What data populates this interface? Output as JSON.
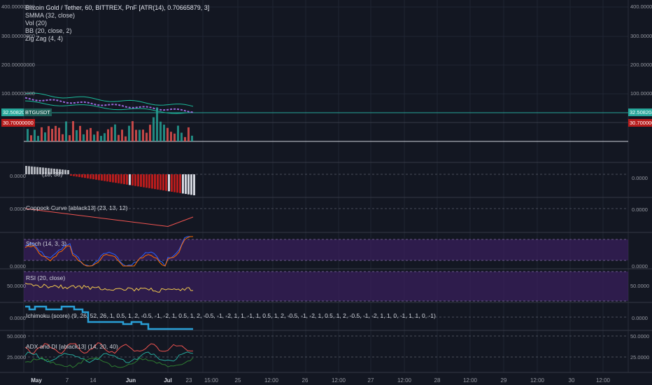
{
  "header": {
    "title": "Bitcoin Gold / Tether, 60, BITTREX, PnF [ATR(14), 0.70665879, 3]",
    "indicators": [
      "SMMA (32, close)",
      "Vol (20)",
      "BB (20, close, 2)",
      "Zig Zag (4, 4)"
    ]
  },
  "price_axis": {
    "left": [
      "400.00000000",
      "300.00000000",
      "200.00000000",
      "100.00000000"
    ],
    "right": [
      "400.00000000",
      "300.00000000",
      "200.00000000",
      "100.00000000"
    ]
  },
  "price_badges": {
    "current": "32.50820434",
    "low": "30.70000000",
    "symbol": "BTGUSDT"
  },
  "panes": {
    "osc1": {
      "label": "(18, 38)",
      "axis": "0.0000"
    },
    "coppock": {
      "label": "Coppock Curve [ablack13] (23, 13, 12)",
      "axis": "0.0000"
    },
    "stoch": {
      "label": "Stoch (14, 3, 3)",
      "axis": "0.0000"
    },
    "rsi": {
      "label": "RSI (20, close)",
      "axis": "50.0000"
    },
    "ichimoku": {
      "label": "Ichimoku (score) (9, 26, 52, 26, 1, 0.5, 1, 2, -0.5, -1, -2, 1, 0.5, 1, 2, -0.5, -1, -2, 1, 1, -1, 1, 0.5, 1, 2, -0.5, -1, -2, 1, 0.5, 1, 2, -0.5, -1, -2, 1, 1, 0, -1, 1, 1, 0, -1)",
      "axis": "0.0000"
    },
    "adx": {
      "label": "ADX and DI [ablack13] (14, 20, 40)",
      "axis_top": "50.0000",
      "axis_bottom": "25.0000"
    }
  },
  "time_axis": [
    "May",
    "7",
    "14",
    "Jun",
    "Jul",
    "23",
    "15:00",
    "25",
    "12:00",
    "26",
    "12:00",
    "27",
    "12:00",
    "28",
    "12:00",
    "29",
    "12:00",
    "30",
    "12:00"
  ],
  "time_axis_bold": [
    "May",
    "Jun",
    "Jul"
  ],
  "colors": {
    "background": "#131722",
    "bb_band": "#1bbc9b",
    "current_line": "#26a69a",
    "up_bar": "#26a69a",
    "down_bar": "#ef5350",
    "osc_red": "#b71c1c",
    "stoch_fill": "#3b1f5e",
    "rsi_line": "#f2c94c",
    "ichimoku_line": "#2a9fd6"
  }
}
